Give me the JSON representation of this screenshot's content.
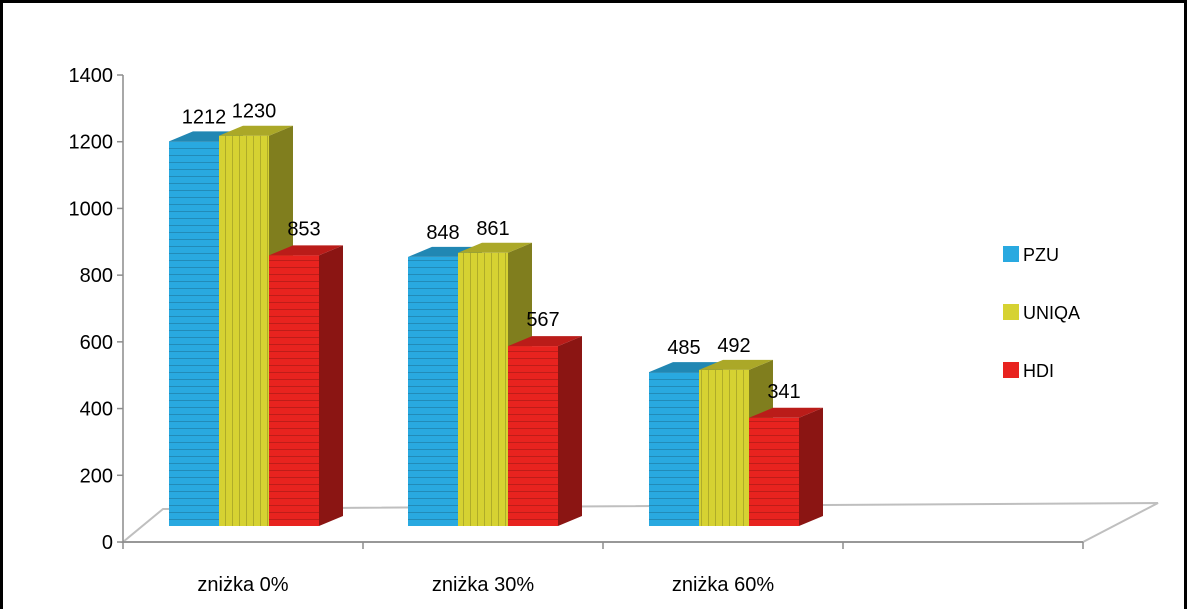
{
  "chart_data": {
    "type": "bar",
    "title": "",
    "xlabel": "",
    "ylabel": "",
    "ylim": [
      0,
      1400
    ],
    "yticks": [
      0,
      200,
      400,
      600,
      800,
      1000,
      1200,
      1400
    ],
    "categories": [
      "zniżka 0%",
      "zniżka 30%",
      "zniżka 60%"
    ],
    "series": [
      {
        "name": "PZU",
        "values": [
          1212,
          848,
          485
        ],
        "color": "#29a9e0"
      },
      {
        "name": "UNIQA",
        "values": [
          1230,
          861,
          492
        ],
        "color": "#d6d232"
      },
      {
        "name": "HDI",
        "values": [
          853,
          567,
          341
        ],
        "color": "#e8231f"
      }
    ],
    "legend_position": "right",
    "grid": false,
    "style": "3d-clustered-column"
  }
}
